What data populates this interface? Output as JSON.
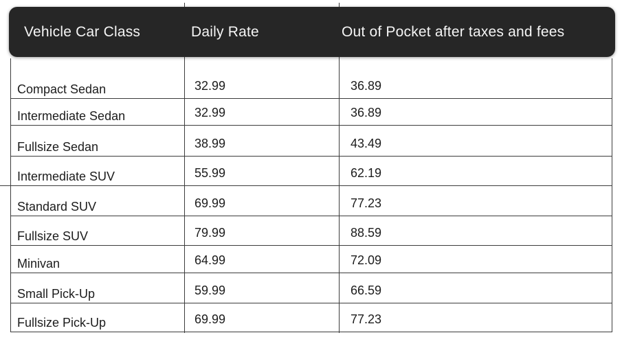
{
  "table": {
    "columns": [
      {
        "label": "Vehicle Car Class"
      },
      {
        "label": "Daily Rate"
      },
      {
        "label": "Out of Pocket after taxes and fees"
      }
    ],
    "rows": [
      {
        "vehicle_class": "Compact Sedan",
        "daily_rate": "32.99",
        "out_of_pocket": "36.89"
      },
      {
        "vehicle_class": "Intermediate Sedan",
        "daily_rate": "32.99",
        "out_of_pocket": "36.89"
      },
      {
        "vehicle_class": "Fullsize Sedan",
        "daily_rate": "38.99",
        "out_of_pocket": "43.49"
      },
      {
        "vehicle_class": "Intermediate SUV",
        "daily_rate": "55.99",
        "out_of_pocket": "62.19"
      },
      {
        "vehicle_class": "Standard SUV",
        "daily_rate": "69.99",
        "out_of_pocket": "77.23"
      },
      {
        "vehicle_class": "Fullsize SUV",
        "daily_rate": "79.99",
        "out_of_pocket": "88.59"
      },
      {
        "vehicle_class": "Minivan",
        "daily_rate": "64.99",
        "out_of_pocket": "72.09"
      },
      {
        "vehicle_class": "Small Pick-Up",
        "daily_rate": "59.99",
        "out_of_pocket": "66.59"
      },
      {
        "vehicle_class": "Fullsize Pick-Up",
        "daily_rate": "69.99",
        "out_of_pocket": "77.23"
      }
    ]
  },
  "colors": {
    "header_bg": "#262626",
    "header_text": "#f5f5f5",
    "row_text": "#1c1c1c",
    "grid_line": "#3b3b3b",
    "background": "#ffffff"
  },
  "chart_data": {
    "type": "table",
    "title": "",
    "columns": [
      "Vehicle Car Class",
      "Daily Rate",
      "Out of Pocket after taxes and fees"
    ],
    "rows": [
      [
        "Compact Sedan",
        32.99,
        36.89
      ],
      [
        "Intermediate Sedan",
        32.99,
        36.89
      ],
      [
        "Fullsize Sedan",
        38.99,
        43.49
      ],
      [
        "Intermediate SUV",
        55.99,
        62.19
      ],
      [
        "Standard SUV",
        69.99,
        77.23
      ],
      [
        "Fullsize SUV",
        79.99,
        88.59
      ],
      [
        "Minivan",
        64.99,
        72.09
      ],
      [
        "Small Pick-Up",
        59.99,
        66.59
      ],
      [
        "Fullsize Pick-Up",
        69.99,
        77.23
      ]
    ]
  }
}
